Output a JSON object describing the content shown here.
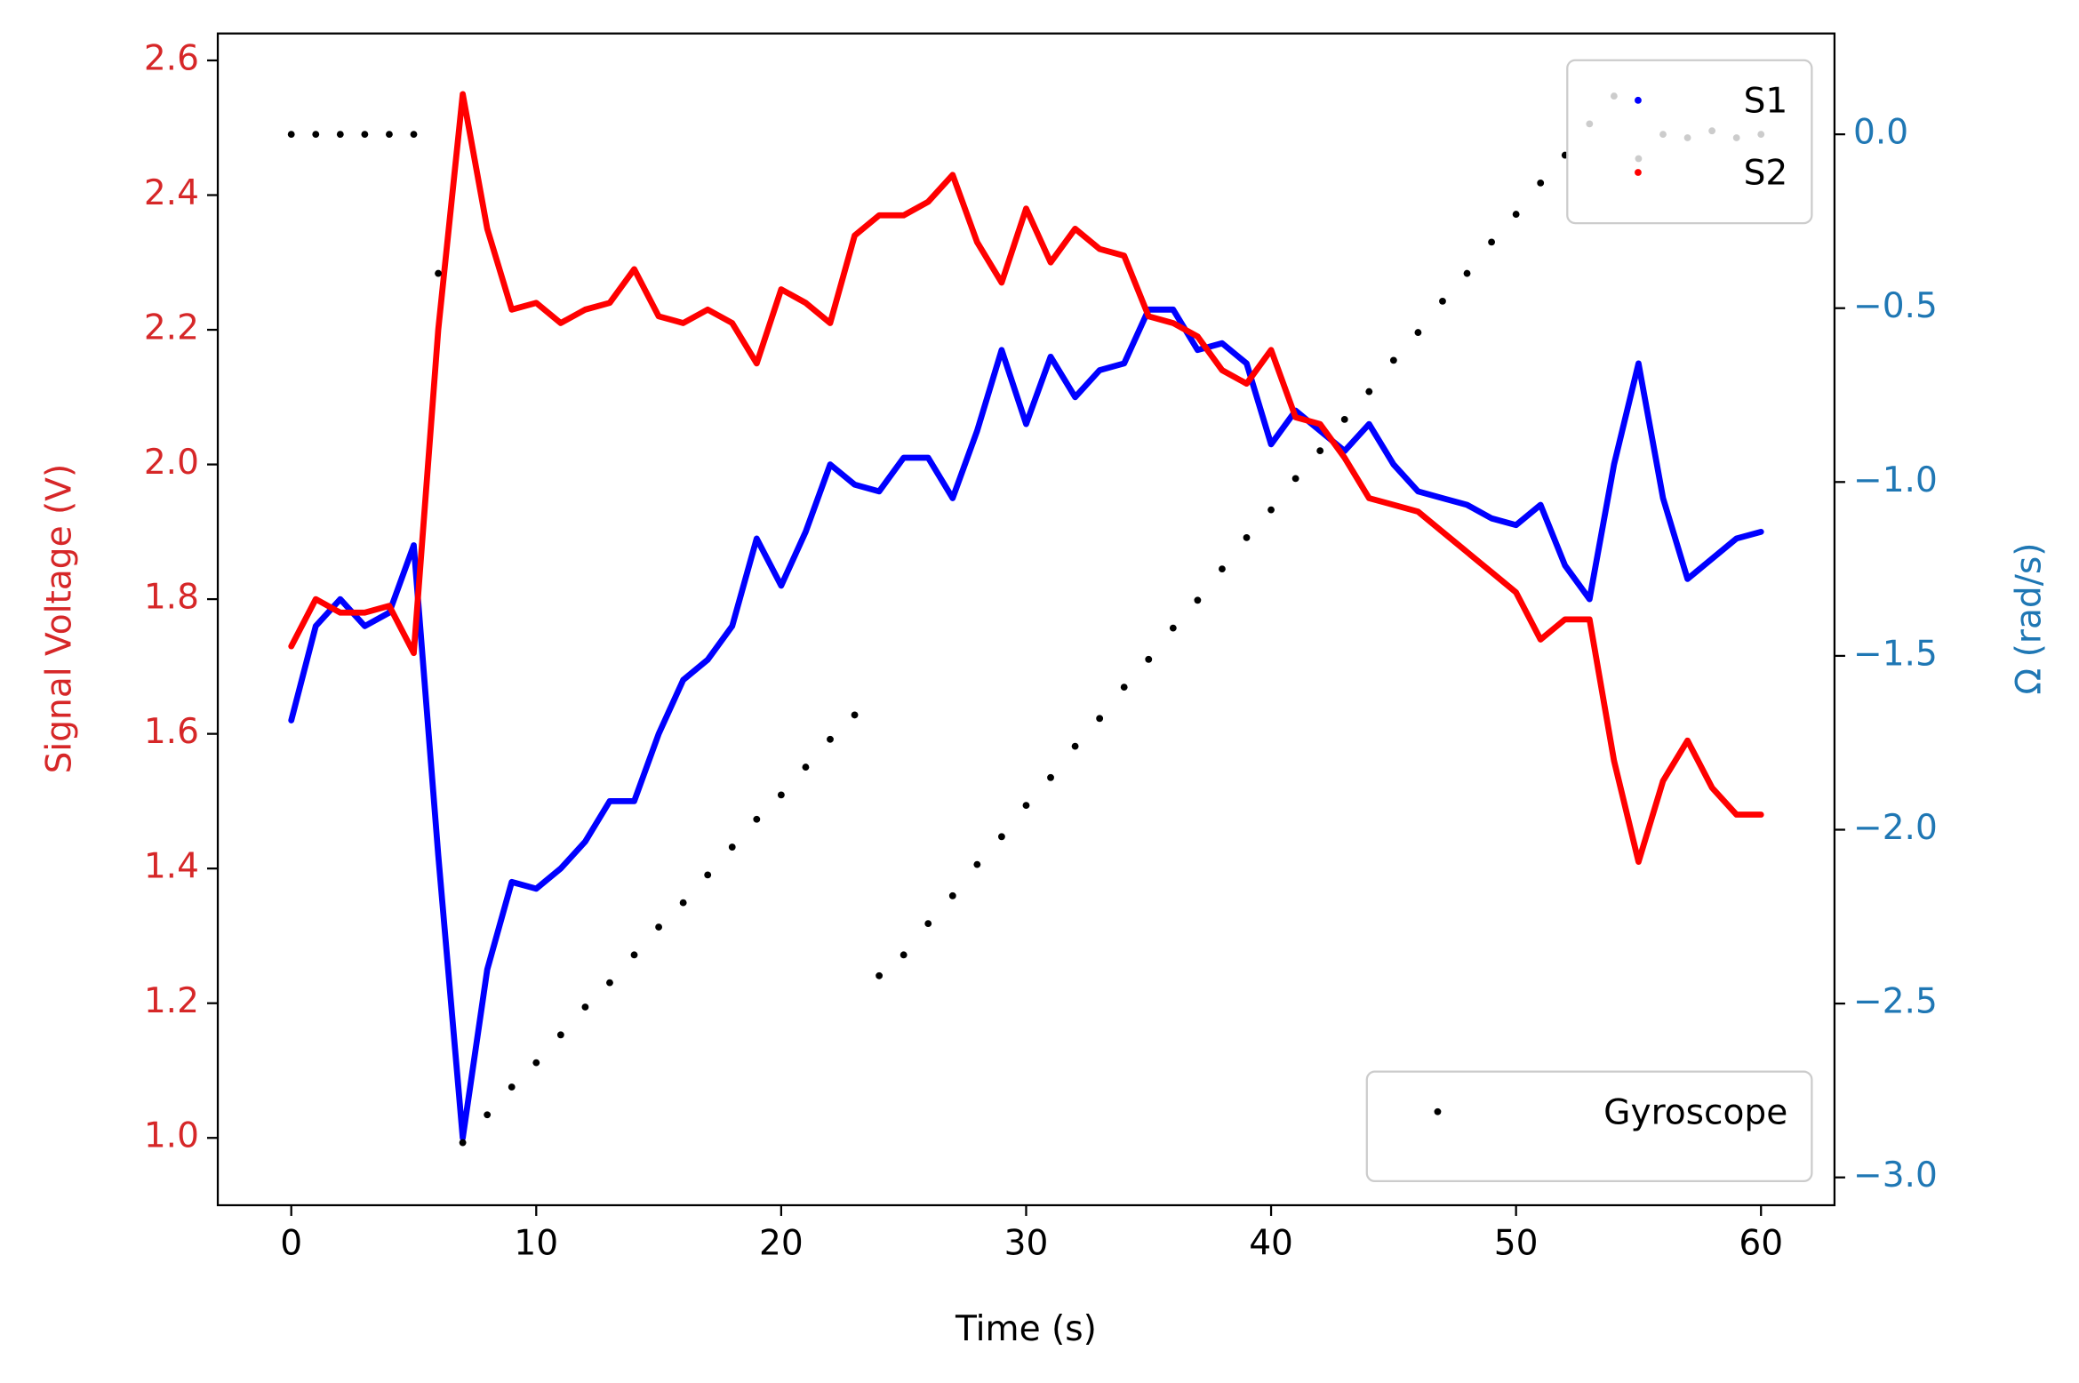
{
  "chart_data": {
    "type": "line",
    "xlabel": "Time (s)",
    "ylabel": "Signal Voltage (V)",
    "y2label": "Ω (rad/s)",
    "ylabel_color": "#d62728",
    "y2label_color": "#1f77b4",
    "x": [
      0,
      1,
      2,
      3,
      4,
      5,
      6,
      7,
      8,
      9,
      10,
      11,
      12,
      13,
      14,
      15,
      16,
      17,
      18,
      19,
      20,
      21,
      22,
      23,
      24,
      25,
      26,
      27,
      28,
      29,
      30,
      31,
      32,
      33,
      34,
      35,
      36,
      37,
      38,
      39,
      40,
      41,
      42,
      43,
      44,
      45,
      46,
      47,
      48,
      49,
      50,
      51,
      52,
      53,
      54,
      55,
      56,
      57,
      58,
      59,
      60
    ],
    "series": [
      {
        "name": "S1",
        "color": "#0000ff",
        "axis": "y",
        "style": "line",
        "values": [
          1.62,
          1.76,
          1.8,
          1.76,
          1.78,
          1.88,
          1.42,
          1.0,
          1.25,
          1.38,
          1.37,
          1.4,
          1.44,
          1.5,
          1.5,
          1.6,
          1.68,
          1.71,
          1.76,
          1.89,
          1.82,
          1.9,
          2.0,
          1.97,
          1.96,
          2.01,
          2.01,
          1.95,
          2.05,
          2.17,
          2.06,
          2.16,
          2.1,
          2.14,
          2.15,
          2.23,
          2.23,
          2.17,
          2.18,
          2.15,
          2.03,
          2.08,
          2.05,
          2.02,
          2.06,
          2.0,
          1.96,
          1.95,
          1.94,
          1.92,
          1.91,
          1.94,
          1.85,
          1.8,
          2.0,
          2.15,
          1.95,
          1.83,
          1.86,
          1.89,
          1.9
        ]
      },
      {
        "name": "S2",
        "color": "#ff0000",
        "axis": "y",
        "style": "line",
        "values": [
          1.73,
          1.8,
          1.78,
          1.78,
          1.79,
          1.72,
          2.2,
          2.55,
          2.35,
          2.23,
          2.24,
          2.21,
          2.23,
          2.24,
          2.29,
          2.22,
          2.21,
          2.23,
          2.21,
          2.15,
          2.26,
          2.24,
          2.21,
          2.34,
          2.37,
          2.37,
          2.39,
          2.43,
          2.33,
          2.27,
          2.38,
          2.3,
          2.35,
          2.32,
          2.31,
          2.22,
          2.21,
          2.19,
          2.14,
          2.12,
          2.17,
          2.07,
          2.06,
          2.01,
          1.95,
          1.94,
          1.93,
          1.9,
          1.87,
          1.84,
          1.81,
          1.74,
          1.77,
          1.77,
          1.56,
          1.41,
          1.53,
          1.59,
          1.52,
          1.48,
          1.48
        ]
      },
      {
        "name": "Gyroscope",
        "color": "#000000",
        "axis": "y2",
        "style": "dots",
        "values": [
          0.0,
          0.0,
          0.0,
          0.0,
          0.0,
          0.0,
          -0.4,
          -2.9,
          -2.82,
          -2.74,
          -2.67,
          -2.59,
          -2.51,
          -2.44,
          -2.36,
          -2.28,
          -2.21,
          -2.13,
          -2.05,
          -1.97,
          -1.9,
          -1.82,
          -1.74,
          -1.67,
          -2.42,
          -2.36,
          -2.27,
          -2.19,
          -2.1,
          -2.02,
          -1.93,
          -1.85,
          -1.76,
          -1.68,
          -1.59,
          -1.51,
          -1.42,
          -1.34,
          -1.25,
          -1.16,
          -1.08,
          -0.99,
          -0.91,
          -0.82,
          -0.74,
          -0.65,
          -0.57,
          -0.48,
          -0.4,
          -0.31,
          -0.23,
          -0.14,
          -0.06,
          0.03,
          0.11,
          -0.07,
          0.0,
          -0.01,
          0.01,
          -0.01,
          0.0
        ]
      }
    ],
    "xlim": [
      -3,
      63
    ],
    "xticks": [
      0,
      10,
      20,
      30,
      40,
      50,
      60
    ],
    "ylim": [
      0.9,
      2.64
    ],
    "yticks": [
      {
        "value": 1.0,
        "label": "1.0"
      },
      1.2,
      1.4,
      1.6,
      1.8,
      {
        "value": 2.0,
        "label": "2.0"
      },
      2.2,
      2.4,
      2.6
    ],
    "y2lim": [
      -3.08,
      0.29
    ],
    "y2ticks": [
      {
        "value": -3.0,
        "label": "−3.0"
      },
      {
        "value": -2.5,
        "label": "−2.5"
      },
      {
        "value": -2.0,
        "label": "−2.0"
      },
      {
        "value": -1.5,
        "label": "−1.5"
      },
      {
        "value": -1.0,
        "label": "−1.0"
      },
      {
        "value": -0.5,
        "label": "−0.5"
      },
      {
        "value": 0.0,
        "label": "0.0"
      }
    ],
    "legend_loc": "upper right",
    "y2_legend_loc": "lower right"
  }
}
